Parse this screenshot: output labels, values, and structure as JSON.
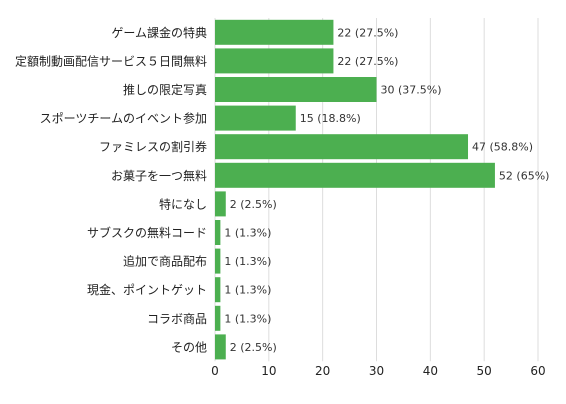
{
  "chart_data": {
    "type": "bar",
    "orientation": "horizontal",
    "categories": [
      "ゲーム課金の特典",
      "定額制動画配信サービス５日間無料",
      "推しの限定写真",
      "スポーツチームのイベント参加",
      "ファミレスの割引券",
      "お菓子を一つ無料",
      "特になし",
      "サブスクの無料コード",
      "追加で商品配布",
      "現金、ポイントゲット",
      "コラボ商品",
      "その他"
    ],
    "values": [
      22,
      22,
      30,
      15,
      47,
      52,
      2,
      1,
      1,
      1,
      1,
      2
    ],
    "data_labels": [
      "22 (27.5%)",
      "22 (27.5%)",
      "30 (37.5%)",
      "15 (18.8%)",
      "47 (58.8%)",
      "52 (65%)",
      "2 (2.5%)",
      "1 (1.3%)",
      "1 (1.3%)",
      "1 (1.3%)",
      "1 (1.3%)",
      "2 (2.5%)"
    ],
    "xlim": [
      0,
      60
    ],
    "x_ticks": [
      "0",
      "10",
      "20",
      "30",
      "40",
      "50",
      "60"
    ],
    "grid": true,
    "legend": "none",
    "title": "",
    "xlabel": "",
    "ylabel": "",
    "colors": {
      "bar": "#4caf50",
      "grid": "#dddddd",
      "text": "#222222",
      "label": "#333333"
    }
  }
}
